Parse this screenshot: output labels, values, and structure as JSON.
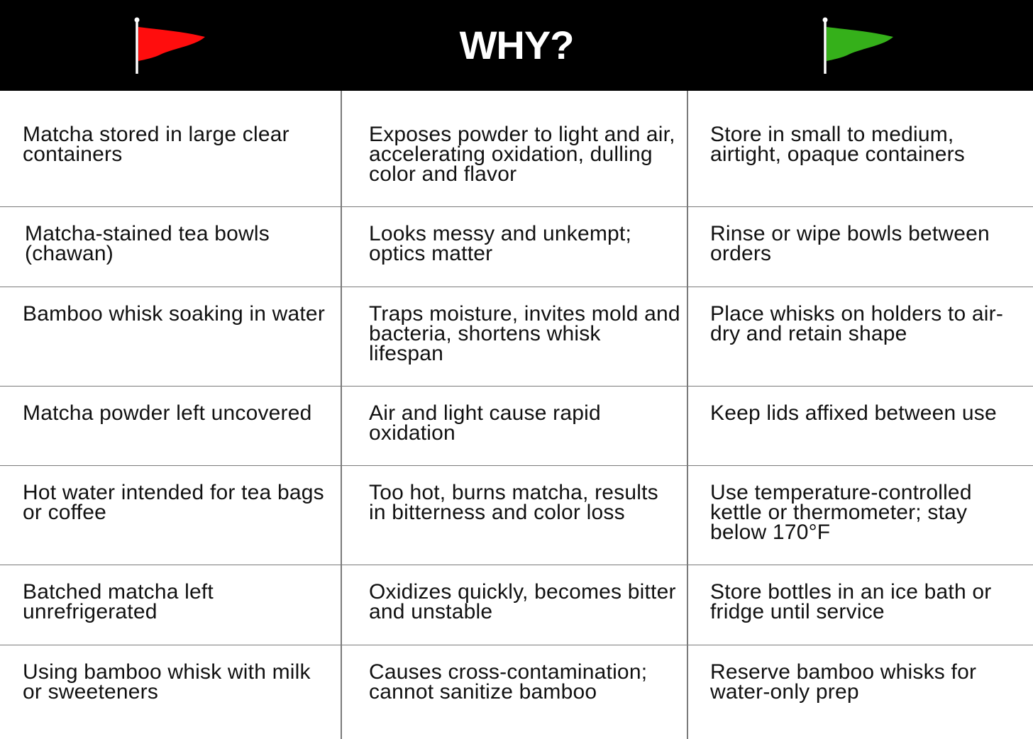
{
  "header": {
    "title": "WHY?",
    "red_flag_icon": "red-flag-icon",
    "green_flag_icon": "green-flag-icon",
    "colors": {
      "background": "#000000",
      "red_flag": "#ff0d0d",
      "green_flag": "#35b01a",
      "title": "#ffffff"
    }
  },
  "rows": [
    {
      "red_flag": "Matcha stored in large clear containers",
      "why": "Exposes powder to light and air, accelerating oxidation, dulling color and flavor",
      "green_flag": "Store in small to medium, airtight, opaque containers"
    },
    {
      "red_flag": "Matcha-stained tea bowls (chawan)",
      "why": "Looks messy and unkempt; optics matter",
      "green_flag": "Rinse or wipe bowls between orders"
    },
    {
      "red_flag": "Bamboo whisk soaking in water",
      "why": "Traps moisture, invites mold and bacteria, shortens whisk lifespan",
      "green_flag": "Place whisks on holders to air-dry and retain shape"
    },
    {
      "red_flag": "Matcha powder left uncovered",
      "why": "Air and light cause rapid oxidation",
      "green_flag": "Keep lids affixed between use"
    },
    {
      "red_flag": "Hot water intended for tea bags or coffee",
      "why": "Too hot, burns matcha, results in bitterness and color loss",
      "green_flag": "Use temperature-controlled kettle or thermometer; stay below 170°F"
    },
    {
      "red_flag": "Batched matcha left unrefrigerated",
      "why": "Oxidizes quickly, becomes bitter and unstable",
      "green_flag": "Store bottles in an ice bath or fridge until service"
    },
    {
      "red_flag": "Using bamboo whisk with milk or sweeteners",
      "why": "Causes cross-contamination; cannot sanitize bamboo",
      "green_flag": "Reserve bamboo whisks for water-only prep"
    }
  ]
}
